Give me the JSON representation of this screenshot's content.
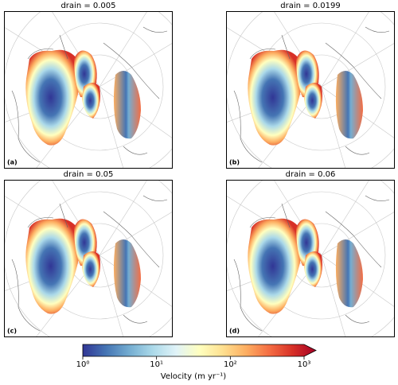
{
  "panels": [
    {
      "title": "drain = 0.005",
      "label": "(a)"
    },
    {
      "title": "drain = 0.0199",
      "label": "(b)"
    },
    {
      "title": "drain = 0.05",
      "label": "(c)"
    },
    {
      "title": "drain = 0.06",
      "label": "(d)"
    }
  ],
  "colorbar": {
    "label": "Velocity (m yr⁻¹)",
    "scale": "log",
    "lim": [
      1,
      1000
    ],
    "ticks": [
      {
        "value": 1,
        "label": "10⁰"
      },
      {
        "value": 10,
        "label": "10¹"
      },
      {
        "value": 100,
        "label": "10²"
      },
      {
        "value": 1000,
        "label": "10³"
      }
    ]
  }
}
